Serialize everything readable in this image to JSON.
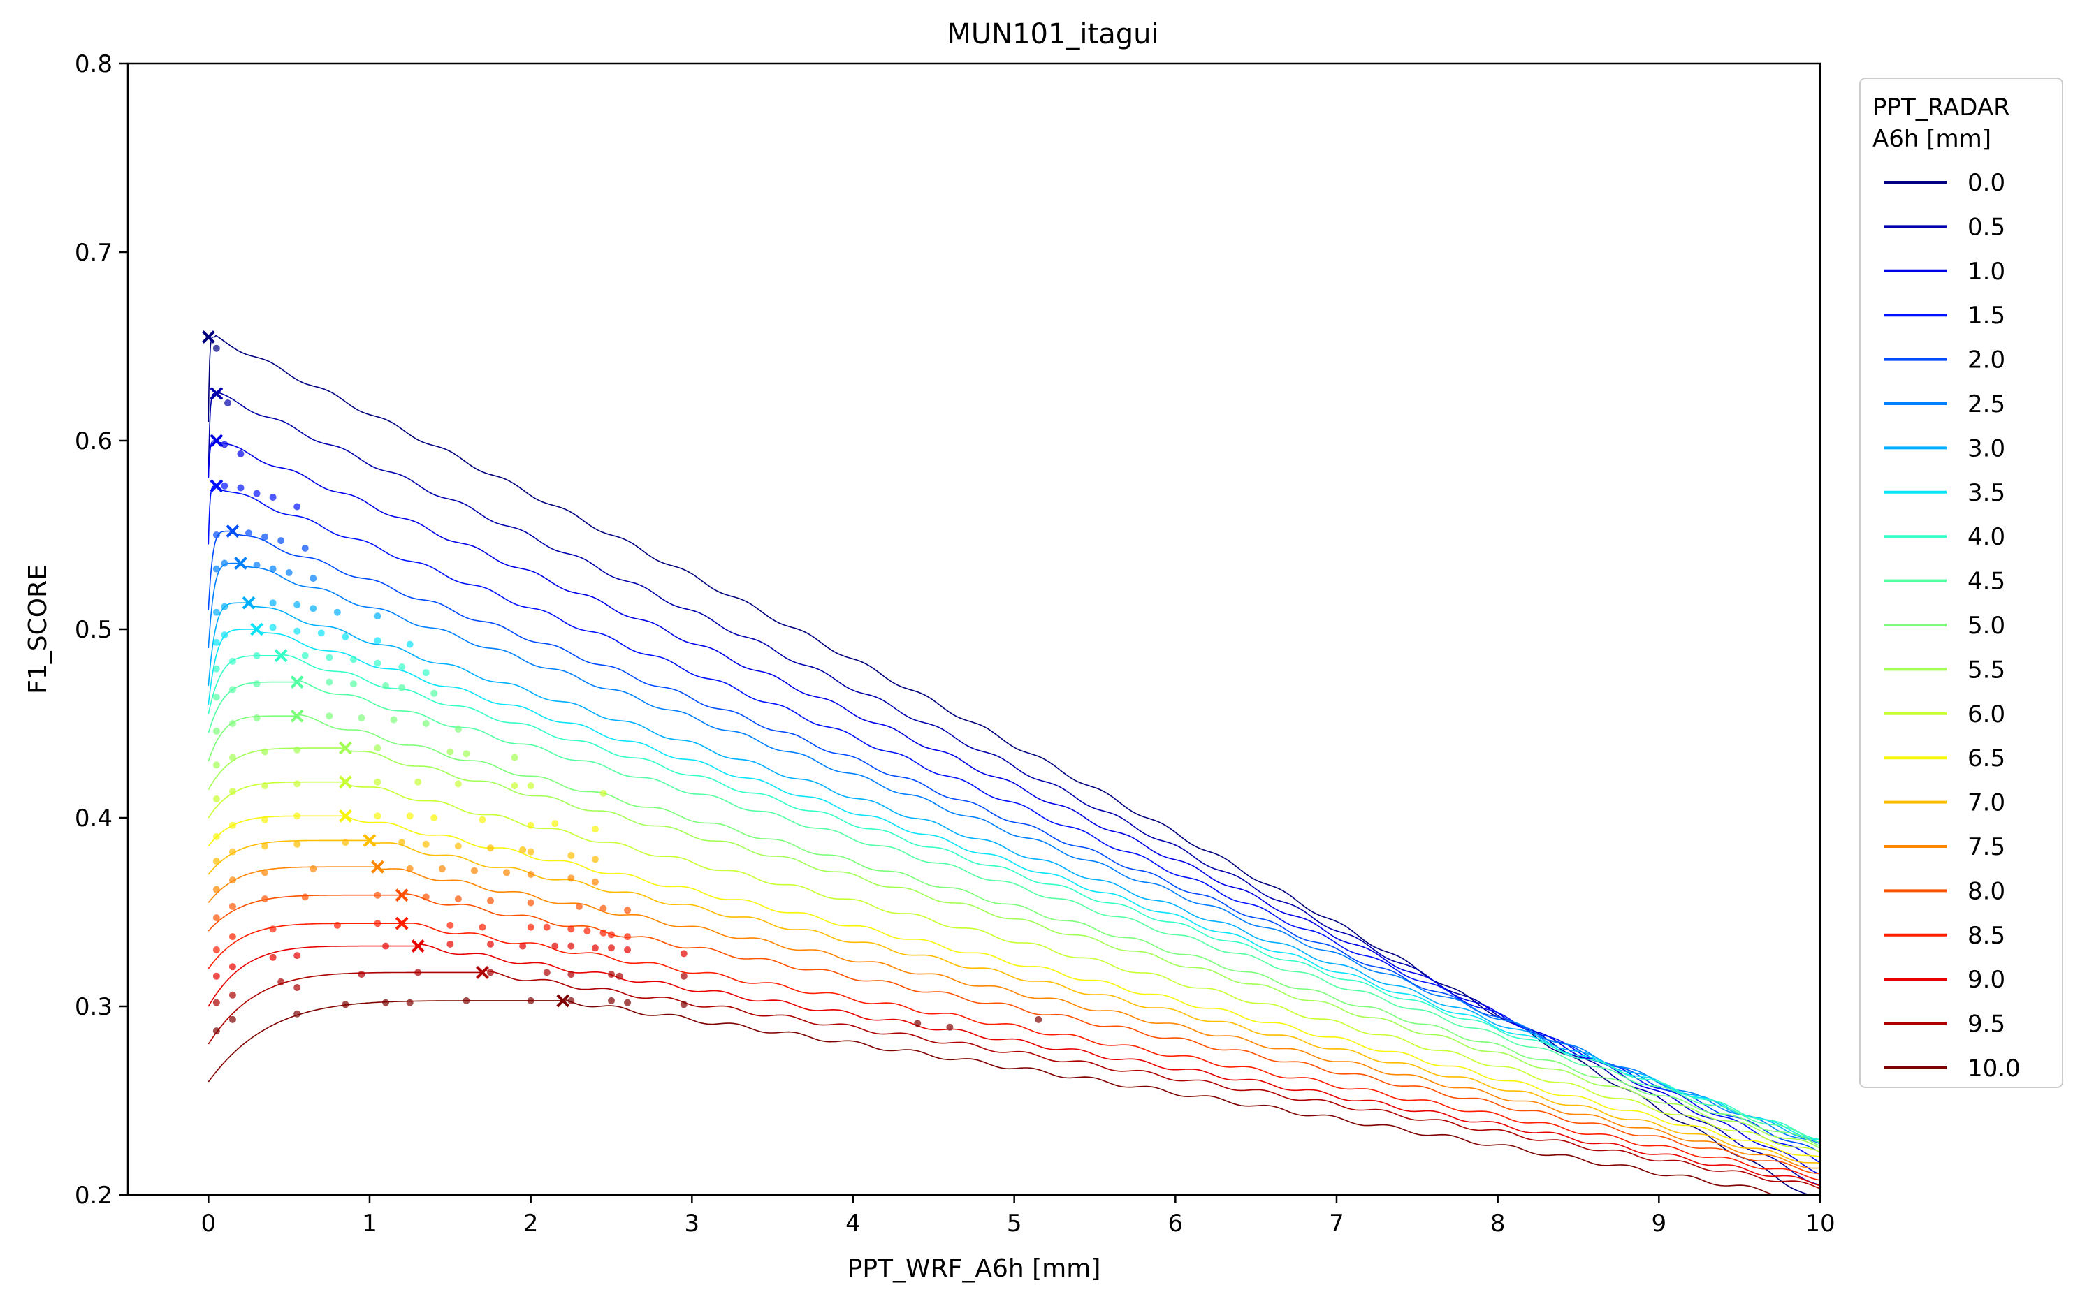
{
  "chart_data": {
    "type": "line",
    "title": "MUN101_itagui",
    "xlabel": "PPT_WRF_A6h [mm]",
    "ylabel": "F1_SCORE",
    "xlim": [
      -0.5,
      10
    ],
    "ylim": [
      0.2,
      0.8
    ],
    "x_ticks": [
      0,
      1,
      2,
      3,
      4,
      5,
      6,
      7,
      8,
      9,
      10
    ],
    "y_ticks": [
      0.2,
      0.3,
      0.4,
      0.5,
      0.6,
      0.7,
      0.8
    ],
    "grid": false,
    "legend": {
      "title": "PPT_RADAR\nA6h [mm]",
      "placement": "right outside"
    },
    "series": [
      {
        "name": "0.0",
        "color": "#00007f",
        "start_y": 0.61,
        "best_x": 0.0,
        "best_y": 0.655,
        "end_y": 0.196,
        "points": [
          [
            0.05,
            0.649
          ]
        ]
      },
      {
        "name": "0.5",
        "color": "#0000ad",
        "start_y": 0.58,
        "best_x": 0.05,
        "best_y": 0.625,
        "end_y": 0.205,
        "points": [
          [
            0.12,
            0.62
          ]
        ]
      },
      {
        "name": "1.0",
        "color": "#0000e8",
        "start_y": 0.58,
        "best_x": 0.05,
        "best_y": 0.6,
        "end_y": 0.212,
        "points": [
          [
            0.1,
            0.598
          ],
          [
            0.2,
            0.593
          ]
        ]
      },
      {
        "name": "1.5",
        "color": "#0012ff",
        "start_y": 0.545,
        "best_x": 0.05,
        "best_y": 0.576,
        "end_y": 0.218,
        "points": [
          [
            0.1,
            0.576
          ],
          [
            0.2,
            0.575
          ],
          [
            0.3,
            0.572
          ],
          [
            0.4,
            0.57
          ],
          [
            0.55,
            0.565
          ]
        ]
      },
      {
        "name": "2.0",
        "color": "#004cff",
        "start_y": 0.51,
        "best_x": 0.15,
        "best_y": 0.552,
        "end_y": 0.222,
        "points": [
          [
            0.05,
            0.55
          ],
          [
            0.25,
            0.551
          ],
          [
            0.35,
            0.549
          ],
          [
            0.45,
            0.547
          ],
          [
            0.6,
            0.543
          ]
        ]
      },
      {
        "name": "2.5",
        "color": "#0080ff",
        "start_y": 0.49,
        "best_x": 0.2,
        "best_y": 0.535,
        "end_y": 0.226,
        "points": [
          [
            0.05,
            0.532
          ],
          [
            0.1,
            0.535
          ],
          [
            0.3,
            0.534
          ],
          [
            0.4,
            0.532
          ],
          [
            0.5,
            0.53
          ],
          [
            0.65,
            0.527
          ]
        ]
      },
      {
        "name": "3.0",
        "color": "#00b0ff",
        "start_y": 0.47,
        "best_x": 0.25,
        "best_y": 0.514,
        "end_y": 0.228,
        "points": [
          [
            0.05,
            0.509
          ],
          [
            0.1,
            0.512
          ],
          [
            0.4,
            0.514
          ],
          [
            0.55,
            0.513
          ],
          [
            0.65,
            0.511
          ],
          [
            0.8,
            0.509
          ],
          [
            1.05,
            0.507
          ]
        ]
      },
      {
        "name": "3.5",
        "color": "#0ae4f8",
        "start_y": 0.46,
        "best_x": 0.3,
        "best_y": 0.5,
        "end_y": 0.229,
        "points": [
          [
            0.05,
            0.493
          ],
          [
            0.1,
            0.497
          ],
          [
            0.4,
            0.501
          ],
          [
            0.55,
            0.499
          ],
          [
            0.7,
            0.498
          ],
          [
            0.85,
            0.496
          ],
          [
            1.05,
            0.494
          ],
          [
            1.25,
            0.492
          ]
        ]
      },
      {
        "name": "4.0",
        "color": "#33ffc7",
        "start_y": 0.455,
        "best_x": 0.45,
        "best_y": 0.486,
        "end_y": 0.23,
        "points": [
          [
            0.05,
            0.479
          ],
          [
            0.15,
            0.483
          ],
          [
            0.3,
            0.486
          ],
          [
            0.6,
            0.486
          ],
          [
            0.75,
            0.485
          ],
          [
            0.9,
            0.484
          ],
          [
            1.05,
            0.482
          ],
          [
            1.2,
            0.48
          ],
          [
            1.35,
            0.477
          ]
        ]
      },
      {
        "name": "4.5",
        "color": "#54ffa3",
        "start_y": 0.445,
        "best_x": 0.55,
        "best_y": 0.472,
        "end_y": 0.229,
        "points": [
          [
            0.05,
            0.464
          ],
          [
            0.15,
            0.468
          ],
          [
            0.3,
            0.471
          ],
          [
            0.75,
            0.472
          ],
          [
            0.9,
            0.471
          ],
          [
            1.1,
            0.47
          ],
          [
            1.2,
            0.469
          ],
          [
            1.4,
            0.466
          ]
        ]
      },
      {
        "name": "5.0",
        "color": "#7dff7a",
        "start_y": 0.43,
        "best_x": 0.55,
        "best_y": 0.454,
        "end_y": 0.227,
        "points": [
          [
            0.05,
            0.446
          ],
          [
            0.15,
            0.45
          ],
          [
            0.3,
            0.453
          ],
          [
            0.75,
            0.454
          ],
          [
            0.95,
            0.453
          ],
          [
            1.15,
            0.452
          ],
          [
            1.35,
            0.45
          ],
          [
            1.55,
            0.447
          ]
        ]
      },
      {
        "name": "5.5",
        "color": "#a3ff54",
        "start_y": 0.415,
        "best_x": 0.85,
        "best_y": 0.437,
        "end_y": 0.225,
        "points": [
          [
            0.05,
            0.428
          ],
          [
            0.15,
            0.432
          ],
          [
            0.35,
            0.435
          ],
          [
            0.55,
            0.436
          ],
          [
            1.05,
            0.437
          ],
          [
            1.5,
            0.435
          ],
          [
            1.6,
            0.434
          ],
          [
            1.9,
            0.432
          ]
        ]
      },
      {
        "name": "6.0",
        "color": "#c7ff30",
        "start_y": 0.4,
        "best_x": 0.85,
        "best_y": 0.419,
        "end_y": 0.222,
        "points": [
          [
            0.05,
            0.41
          ],
          [
            0.15,
            0.414
          ],
          [
            0.35,
            0.417
          ],
          [
            0.55,
            0.418
          ],
          [
            1.05,
            0.419
          ],
          [
            1.3,
            0.419
          ],
          [
            1.55,
            0.418
          ],
          [
            1.9,
            0.417
          ],
          [
            2.0,
            0.417
          ],
          [
            2.45,
            0.413
          ]
        ]
      },
      {
        "name": "6.5",
        "color": "#f8f50a",
        "start_y": 0.385,
        "best_x": 0.85,
        "best_y": 0.401,
        "end_y": 0.219,
        "points": [
          [
            0.05,
            0.39
          ],
          [
            0.15,
            0.396
          ],
          [
            0.35,
            0.399
          ],
          [
            0.55,
            0.401
          ],
          [
            1.05,
            0.401
          ],
          [
            1.25,
            0.401
          ],
          [
            1.4,
            0.4
          ],
          [
            1.7,
            0.399
          ],
          [
            2.0,
            0.396
          ],
          [
            2.15,
            0.397
          ],
          [
            2.4,
            0.394
          ]
        ]
      },
      {
        "name": "7.0",
        "color": "#ffbd00",
        "start_y": 0.37,
        "best_x": 1.0,
        "best_y": 0.388,
        "end_y": 0.216,
        "points": [
          [
            0.05,
            0.377
          ],
          [
            0.15,
            0.382
          ],
          [
            0.35,
            0.385
          ],
          [
            0.55,
            0.386
          ],
          [
            0.85,
            0.387
          ],
          [
            1.2,
            0.387
          ],
          [
            1.35,
            0.386
          ],
          [
            1.55,
            0.385
          ],
          [
            1.75,
            0.384
          ],
          [
            1.95,
            0.383
          ],
          [
            2.0,
            0.382
          ],
          [
            2.25,
            0.38
          ],
          [
            2.4,
            0.378
          ]
        ]
      },
      {
        "name": "7.5",
        "color": "#ff8600",
        "start_y": 0.355,
        "best_x": 1.05,
        "best_y": 0.374,
        "end_y": 0.214,
        "points": [
          [
            0.05,
            0.362
          ],
          [
            0.15,
            0.367
          ],
          [
            0.35,
            0.371
          ],
          [
            0.65,
            0.373
          ],
          [
            1.25,
            0.373
          ],
          [
            1.45,
            0.373
          ],
          [
            1.65,
            0.372
          ],
          [
            1.85,
            0.371
          ],
          [
            2.0,
            0.37
          ],
          [
            2.25,
            0.368
          ],
          [
            2.4,
            0.366
          ]
        ]
      },
      {
        "name": "8.0",
        "color": "#ff5200",
        "start_y": 0.34,
        "best_x": 1.2,
        "best_y": 0.359,
        "end_y": 0.212,
        "points": [
          [
            0.05,
            0.347
          ],
          [
            0.15,
            0.353
          ],
          [
            0.35,
            0.357
          ],
          [
            0.6,
            0.358
          ],
          [
            1.05,
            0.359
          ],
          [
            1.35,
            0.358
          ],
          [
            1.55,
            0.357
          ],
          [
            1.75,
            0.356
          ],
          [
            2.0,
            0.355
          ],
          [
            2.3,
            0.353
          ],
          [
            2.45,
            0.352
          ],
          [
            2.6,
            0.351
          ]
        ]
      },
      {
        "name": "8.5",
        "color": "#ff1e00",
        "start_y": 0.32,
        "best_x": 1.2,
        "best_y": 0.344,
        "end_y": 0.209,
        "points": [
          [
            0.05,
            0.33
          ],
          [
            0.15,
            0.337
          ],
          [
            0.4,
            0.341
          ],
          [
            0.8,
            0.343
          ],
          [
            1.05,
            0.344
          ],
          [
            1.5,
            0.343
          ],
          [
            1.7,
            0.342
          ],
          [
            2.0,
            0.342
          ],
          [
            2.1,
            0.342
          ],
          [
            2.25,
            0.341
          ],
          [
            2.35,
            0.34
          ],
          [
            2.45,
            0.339
          ],
          [
            2.5,
            0.338
          ],
          [
            2.6,
            0.337
          ]
        ]
      },
      {
        "name": "9.0",
        "color": "#e80000",
        "start_y": 0.3,
        "best_x": 1.3,
        "best_y": 0.332,
        "end_y": 0.206,
        "points": [
          [
            0.05,
            0.316
          ],
          [
            0.15,
            0.321
          ],
          [
            0.4,
            0.326
          ],
          [
            0.55,
            0.327
          ],
          [
            1.1,
            0.332
          ],
          [
            1.5,
            0.333
          ],
          [
            1.75,
            0.333
          ],
          [
            1.95,
            0.332
          ],
          [
            2.15,
            0.332
          ],
          [
            2.25,
            0.332
          ],
          [
            2.4,
            0.331
          ],
          [
            2.5,
            0.331
          ],
          [
            2.6,
            0.33
          ],
          [
            2.95,
            0.328
          ]
        ]
      },
      {
        "name": "9.5",
        "color": "#ad0000",
        "start_y": 0.28,
        "best_x": 1.7,
        "best_y": 0.318,
        "end_y": 0.204,
        "points": [
          [
            0.05,
            0.302
          ],
          [
            0.15,
            0.306
          ],
          [
            0.45,
            0.313
          ],
          [
            0.55,
            0.31
          ],
          [
            0.95,
            0.317
          ],
          [
            1.3,
            0.318
          ],
          [
            1.75,
            0.318
          ],
          [
            2.1,
            0.318
          ],
          [
            2.25,
            0.317
          ],
          [
            2.5,
            0.317
          ],
          [
            2.55,
            0.316
          ],
          [
            2.95,
            0.316
          ]
        ]
      },
      {
        "name": "10.0",
        "color": "#7f0000",
        "start_y": 0.26,
        "best_x": 2.2,
        "best_y": 0.303,
        "end_y": 0.197,
        "points": [
          [
            0.05,
            0.287
          ],
          [
            0.15,
            0.293
          ],
          [
            0.55,
            0.296
          ],
          [
            0.85,
            0.301
          ],
          [
            1.1,
            0.302
          ],
          [
            1.25,
            0.302
          ],
          [
            1.6,
            0.303
          ],
          [
            2.0,
            0.303
          ],
          [
            2.25,
            0.303
          ],
          [
            2.5,
            0.303
          ],
          [
            2.6,
            0.302
          ],
          [
            2.95,
            0.301
          ],
          [
            4.4,
            0.291
          ],
          [
            4.6,
            0.289
          ],
          [
            5.15,
            0.293
          ]
        ]
      }
    ]
  }
}
